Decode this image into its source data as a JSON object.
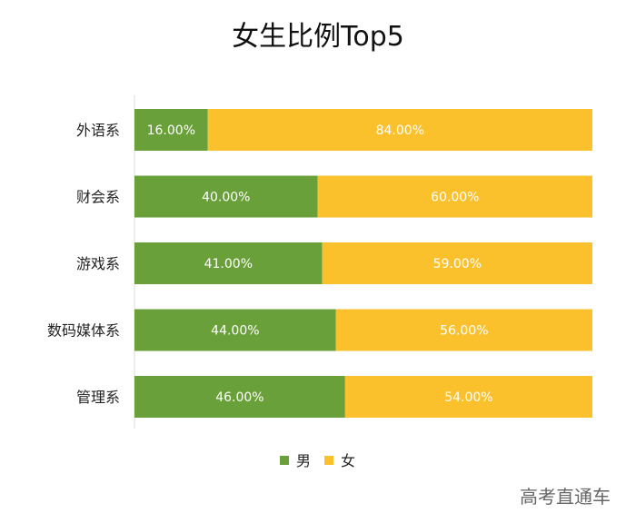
{
  "chart_data": {
    "type": "bar",
    "orientation": "horizontal",
    "stacked": true,
    "title": "女生比例Top5",
    "categories": [
      "外语系",
      "财会系",
      "游戏系",
      "数码媒体系",
      "管理系"
    ],
    "series": [
      {
        "name": "男",
        "color": "#6aa03a",
        "values": [
          16.0,
          40.0,
          41.0,
          44.0,
          46.0
        ],
        "labels": [
          "16.00%",
          "40.00%",
          "41.00%",
          "44.00%",
          "46.00%"
        ]
      },
      {
        "name": "女",
        "color": "#fbc12d",
        "values": [
          84.0,
          60.0,
          59.0,
          56.0,
          54.0
        ],
        "labels": [
          "84.00%",
          "60.00%",
          "59.00%",
          "56.00%",
          "54.00%"
        ]
      }
    ],
    "xlim": [
      0,
      100
    ],
    "grid": false,
    "legend_position": "bottom-center"
  },
  "watermark": "高考直通车"
}
